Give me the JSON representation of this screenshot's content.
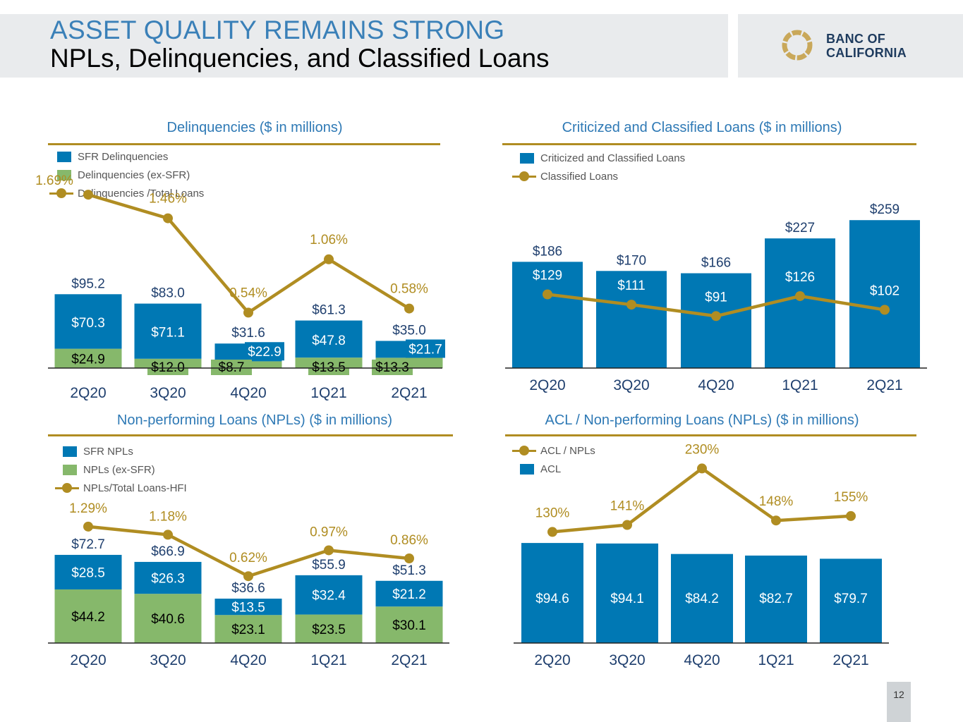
{
  "header": {
    "title": "ASSET QUALITY REMAINS STRONG",
    "subtitle": "NPLs, Delinquencies, and Classified Loans"
  },
  "logo": {
    "line1": "BANC OF",
    "line2": "CALIFORNIA",
    "icon": "ring-logo-icon"
  },
  "colors": {
    "blue": "#0078b4",
    "green": "#86b86b",
    "gold": "#b08d22",
    "title_blue": "#2e79b5",
    "navy": "#1f3f6e"
  },
  "page_number": "12",
  "legends": {
    "delinquencies": [
      "SFR Delinquencies",
      "Delinquencies (ex-SFR)",
      "Delinquencies /Total Loans"
    ],
    "criticized": [
      "Criticized and Classified Loans",
      "Classified Loans"
    ],
    "npl": [
      "SFR NPLs",
      "NPLs (ex-SFR)",
      "NPLs/Total Loans-HFI"
    ],
    "acl": [
      "ACL / NPLs",
      "ACL"
    ]
  },
  "chart_data": [
    {
      "id": "delinquencies",
      "type": "bar",
      "title": "Delinquencies ($ in millions)",
      "categories": [
        "2Q20",
        "3Q20",
        "4Q20",
        "1Q21",
        "2Q21"
      ],
      "series": [
        {
          "name": "SFR Delinquencies",
          "values": [
            70.3,
            71.1,
            22.9,
            47.8,
            21.7
          ],
          "labels": [
            "$70.3",
            "$71.1",
            "$22.9",
            "$47.8",
            "$21.7"
          ]
        },
        {
          "name": "Delinquencies (ex-SFR)",
          "values": [
            24.9,
            12.0,
            8.7,
            13.5,
            13.3
          ],
          "labels": [
            "$24.9",
            "$12.0",
            "$8.7",
            "$13.5",
            "$13.3"
          ]
        }
      ],
      "totals": [
        95.2,
        83.0,
        31.6,
        61.3,
        35.0
      ],
      "total_labels": [
        "$95.2",
        "$83.0",
        "$31.6",
        "$61.3",
        "$35.0"
      ],
      "line": {
        "name": "Delinquencies /Total Loans",
        "values": [
          1.69,
          1.46,
          0.54,
          1.06,
          0.58
        ],
        "labels": [
          "1.69%",
          "1.46%",
          "0.54%",
          "1.06%",
          "0.58%"
        ]
      }
    },
    {
      "id": "criticized",
      "type": "bar",
      "title": "Criticized and Classified Loans ($ in millions)",
      "categories": [
        "2Q20",
        "3Q20",
        "4Q20",
        "1Q21",
        "2Q21"
      ],
      "series": [
        {
          "name": "Criticized and Classified Loans",
          "values": [
            186,
            170,
            166,
            227,
            259
          ],
          "labels": [
            "$186",
            "$170",
            "$166",
            "$227",
            "$259"
          ]
        }
      ],
      "line": {
        "name": "Classified Loans",
        "values": [
          129,
          111,
          91,
          126,
          102
        ],
        "labels": [
          "$129",
          "$111",
          "$91",
          "$126",
          "$102"
        ]
      }
    },
    {
      "id": "npl",
      "type": "bar",
      "title": "Non-performing Loans (NPLs) ($ in millions)",
      "categories": [
        "2Q20",
        "3Q20",
        "4Q20",
        "1Q21",
        "2Q21"
      ],
      "series": [
        {
          "name": "SFR NPLs",
          "values": [
            28.5,
            26.3,
            13.5,
            32.4,
            21.2
          ],
          "labels": [
            "$28.5",
            "$26.3",
            "$13.5",
            "$32.4",
            "$21.2"
          ]
        },
        {
          "name": "NPLs (ex-SFR)",
          "values": [
            44.2,
            40.6,
            23.1,
            23.5,
            30.1
          ],
          "labels": [
            "$44.2",
            "$40.6",
            "$23.1",
            "$23.5",
            "$30.1"
          ]
        }
      ],
      "totals": [
        72.7,
        66.9,
        36.6,
        55.9,
        51.3
      ],
      "total_labels": [
        "$72.7",
        "$66.9",
        "$36.6",
        "$55.9",
        "$51.3"
      ],
      "line": {
        "name": "NPLs/Total Loans-HFI",
        "values": [
          1.29,
          1.18,
          0.62,
          0.97,
          0.86
        ],
        "labels": [
          "1.29%",
          "1.18%",
          "0.62%",
          "0.97%",
          "0.86%"
        ]
      }
    },
    {
      "id": "acl",
      "type": "bar",
      "title": "ACL / Non-performing Loans (NPLs) ($ in millions)",
      "categories": [
        "2Q20",
        "3Q20",
        "4Q20",
        "1Q21",
        "2Q21"
      ],
      "series": [
        {
          "name": "ACL",
          "values": [
            94.6,
            94.1,
            84.2,
            82.7,
            79.7
          ],
          "labels": [
            "$94.6",
            "$94.1",
            "$84.2",
            "$82.7",
            "$79.7"
          ]
        }
      ],
      "line": {
        "name": "ACL / NPLs",
        "values": [
          130,
          141,
          230,
          148,
          155
        ],
        "labels": [
          "130%",
          "141%",
          "230%",
          "148%",
          "155%"
        ]
      }
    }
  ]
}
